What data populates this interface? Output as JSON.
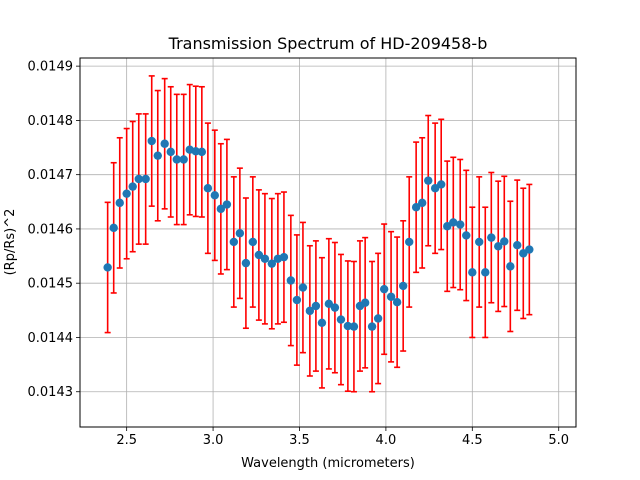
{
  "chart_data": {
    "type": "scatter",
    "title": "Transmission Spectrum of HD-209458-b",
    "xlabel": "Wavelength (micrometers)",
    "ylabel": "(Rp/Rs)^2",
    "xlim": [
      2.23,
      5.1
    ],
    "ylim": [
      0.014235,
      0.014915
    ],
    "x_ticks": [
      2.5,
      3.0,
      3.5,
      4.0,
      4.5,
      5.0
    ],
    "x_tick_labels": [
      "2.5",
      "3.0",
      "3.5",
      "4.0",
      "4.5",
      "5.0"
    ],
    "y_ticks": [
      0.0143,
      0.0144,
      0.0145,
      0.0146,
      0.0147,
      0.0148,
      0.0149
    ],
    "y_tick_labels": [
      "0.0143",
      "0.0144",
      "0.0145",
      "0.0146",
      "0.0147",
      "0.0148",
      "0.0149"
    ],
    "grid": true,
    "marker_color": "#1f77b4",
    "errorbar_color": "#ff0000",
    "errorbar": 0.00012,
    "points": [
      [
        2.39,
        0.014529
      ],
      [
        2.425,
        0.014602
      ],
      [
        2.46,
        0.014648
      ],
      [
        2.5,
        0.014665
      ],
      [
        2.535,
        0.014678
      ],
      [
        2.57,
        0.014692
      ],
      [
        2.61,
        0.014692
      ],
      [
        2.645,
        0.014762
      ],
      [
        2.68,
        0.014735
      ],
      [
        2.72,
        0.014757
      ],
      [
        2.755,
        0.014742
      ],
      [
        2.79,
        0.014728
      ],
      [
        2.83,
        0.014728
      ],
      [
        2.865,
        0.014746
      ],
      [
        2.9,
        0.014743
      ],
      [
        2.935,
        0.014742
      ],
      [
        2.97,
        0.014675
      ],
      [
        3.01,
        0.014662
      ],
      [
        3.045,
        0.014637
      ],
      [
        3.08,
        0.014645
      ],
      [
        3.12,
        0.014576
      ],
      [
        3.155,
        0.014592
      ],
      [
        3.19,
        0.014537
      ],
      [
        3.23,
        0.014576
      ],
      [
        3.265,
        0.014552
      ],
      [
        3.3,
        0.014545
      ],
      [
        3.34,
        0.014536
      ],
      [
        3.375,
        0.014545
      ],
      [
        3.41,
        0.014548
      ],
      [
        3.45,
        0.014505
      ],
      [
        3.485,
        0.014469
      ],
      [
        3.52,
        0.014492
      ],
      [
        3.56,
        0.014449
      ],
      [
        3.595,
        0.014458
      ],
      [
        3.63,
        0.014427
      ],
      [
        3.67,
        0.014462
      ],
      [
        3.705,
        0.014455
      ],
      [
        3.74,
        0.014433
      ],
      [
        3.78,
        0.014421
      ],
      [
        3.815,
        0.01442
      ],
      [
        3.85,
        0.014458
      ],
      [
        3.88,
        0.014464
      ],
      [
        3.92,
        0.01442
      ],
      [
        3.955,
        0.014435
      ],
      [
        3.99,
        0.014489
      ],
      [
        4.03,
        0.014475
      ],
      [
        4.065,
        0.014465
      ],
      [
        4.1,
        0.014495
      ],
      [
        4.135,
        0.014576
      ],
      [
        4.175,
        0.01464
      ],
      [
        4.21,
        0.014648
      ],
      [
        4.245,
        0.014689
      ],
      [
        4.285,
        0.014675
      ],
      [
        4.32,
        0.014682
      ],
      [
        4.355,
        0.014605
      ],
      [
        4.39,
        0.014612
      ],
      [
        4.43,
        0.014608
      ],
      [
        4.465,
        0.014588
      ],
      [
        4.5,
        0.01452
      ],
      [
        4.54,
        0.014576
      ],
      [
        4.575,
        0.01452
      ],
      [
        4.61,
        0.014584
      ],
      [
        4.65,
        0.014568
      ],
      [
        4.685,
        0.014577
      ],
      [
        4.72,
        0.014531
      ],
      [
        4.76,
        0.01457
      ],
      [
        4.795,
        0.014555
      ],
      [
        4.83,
        0.014562
      ]
    ]
  }
}
